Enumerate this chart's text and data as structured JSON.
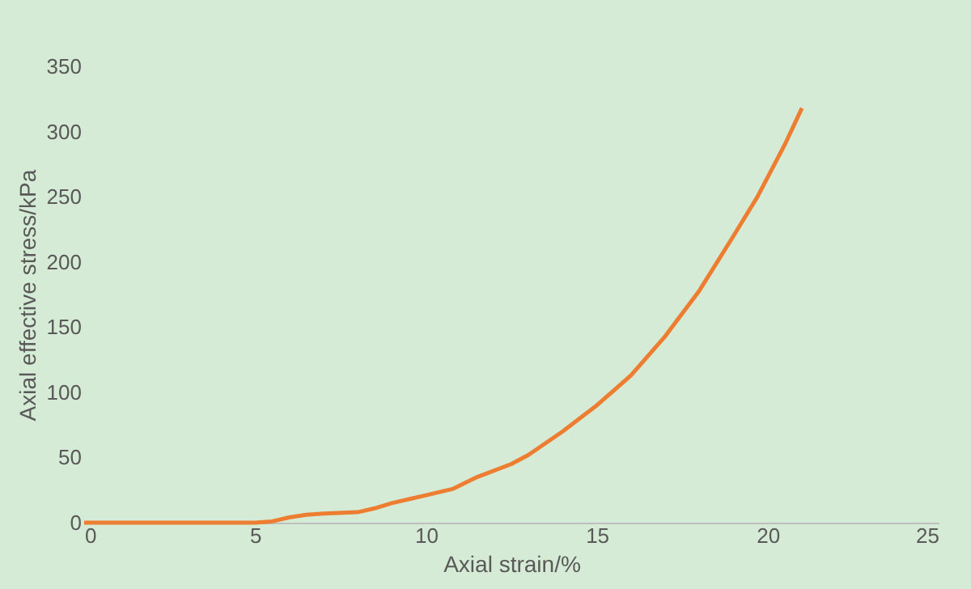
{
  "chart_data": {
    "type": "line",
    "xlabel": "Axial strain/%",
    "ylabel": "Axial effective stress/kPa",
    "xlim": [
      0,
      25
    ],
    "xticks": [
      0,
      5,
      10,
      15,
      20,
      25
    ],
    "ylim": [
      0,
      350
    ],
    "yticks": [
      0,
      50,
      100,
      150,
      200,
      250,
      300,
      350
    ],
    "grid": false,
    "line_style": "solid",
    "series": [
      {
        "color": "#ed7d31",
        "x": [
          0,
          1,
          2,
          3,
          4,
          5,
          5.5,
          6,
          6.5,
          7,
          8,
          8.5,
          9,
          10,
          10.8,
          11.5,
          12.5,
          13,
          14,
          15,
          16,
          17,
          18,
          19,
          19.7,
          20.5,
          21
        ],
        "values": [
          0,
          0,
          0,
          0,
          0,
          0,
          1,
          4,
          6,
          7,
          8,
          11,
          15,
          21,
          26,
          35,
          45,
          52,
          70,
          90,
          113,
          143,
          178,
          220,
          250,
          290,
          318
        ]
      }
    ]
  }
}
